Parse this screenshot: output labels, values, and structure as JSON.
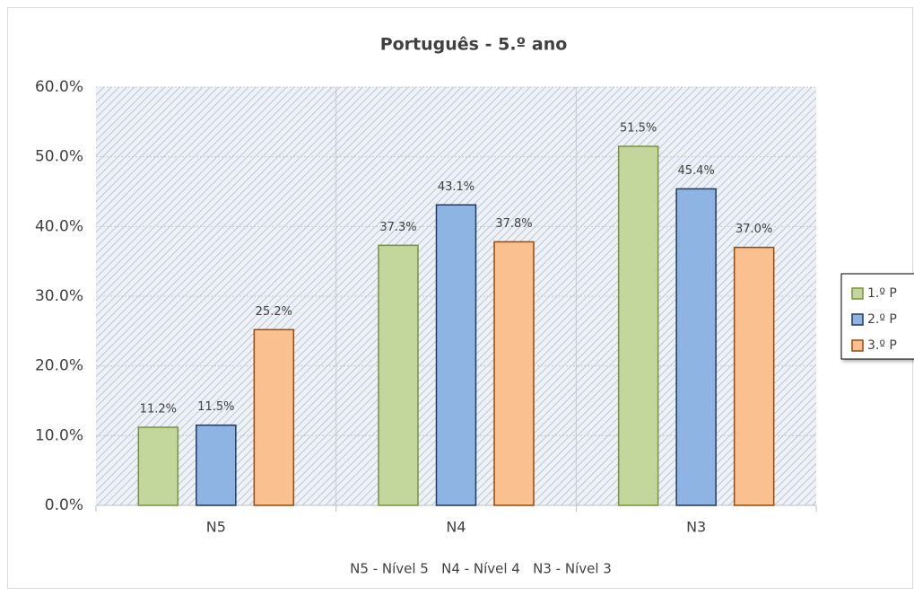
{
  "chart_data": {
    "type": "bar",
    "title": "Português - 5.º ano",
    "note": "N5 - Nível 5   N4 - Nível 4   N3 - Nível 3",
    "categories": [
      "N5",
      "N4",
      "N3"
    ],
    "series": [
      {
        "name": "1.º P",
        "color": "#c3d69b",
        "border": "#77933c",
        "values": [
          11.2,
          37.3,
          51.5
        ],
        "value_labels": [
          "11.2%",
          "37.3%",
          "51.5%"
        ]
      },
      {
        "name": "2.º P",
        "color": "#8eb4e3",
        "border": "#1f3864",
        "values": [
          11.5,
          43.1,
          45.4
        ],
        "value_labels": [
          "11.5%",
          "43.1%",
          "45.4%"
        ]
      },
      {
        "name": "3.º P",
        "color": "#fac090",
        "border": "#984807",
        "values": [
          25.2,
          37.8,
          37.0
        ],
        "value_labels": [
          "25.2%",
          "37.8%",
          "37.0%"
        ]
      }
    ],
    "ylim": [
      0,
      60
    ],
    "yticks": [
      {
        "value": 0,
        "label": "0.0%"
      },
      {
        "value": 10,
        "label": "10.0%"
      },
      {
        "value": 20,
        "label": "20.0%"
      },
      {
        "value": 30,
        "label": "30.0%"
      },
      {
        "value": 40,
        "label": "40.0%"
      },
      {
        "value": 50,
        "label": "50.0%"
      },
      {
        "value": 60,
        "label": "60.0%"
      }
    ],
    "grid": true
  }
}
